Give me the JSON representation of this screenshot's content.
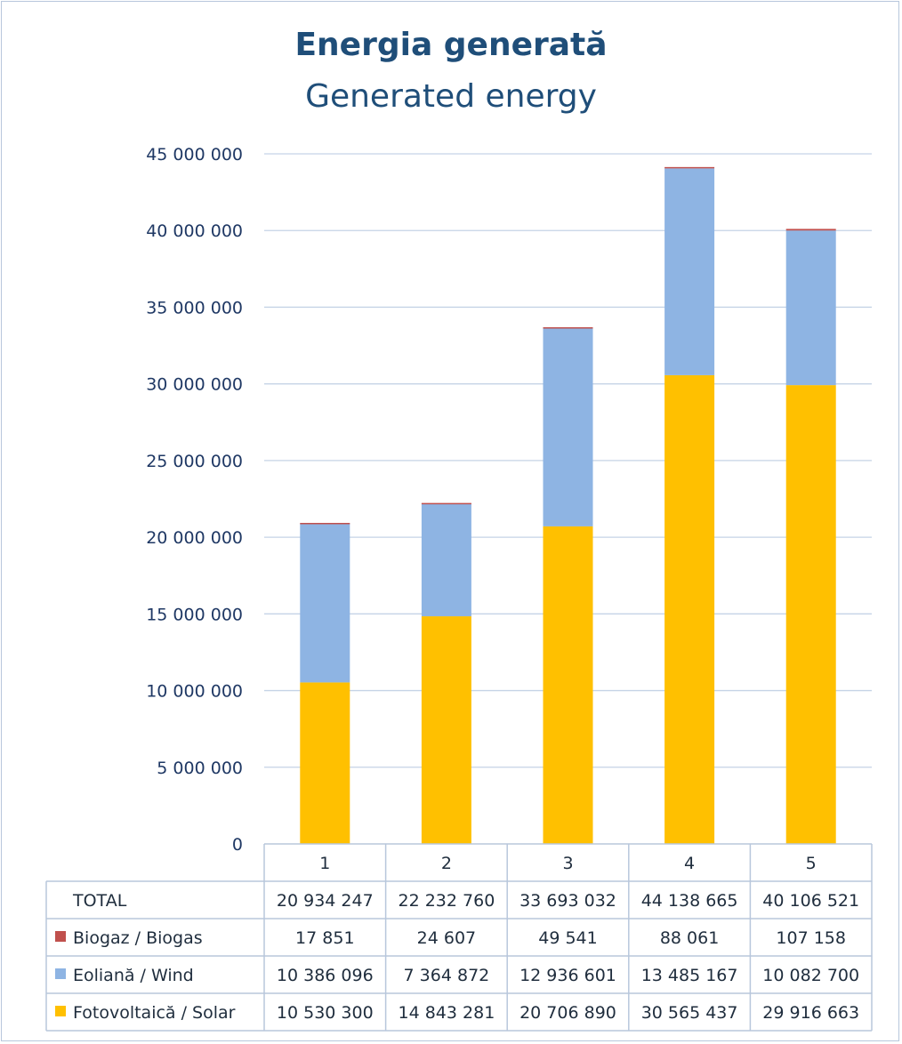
{
  "chart_data": {
    "type": "bar",
    "stacked": true,
    "title": "Energia generată",
    "subtitle": "Generated energy",
    "categories": [
      "1",
      "2",
      "3",
      "4",
      "5"
    ],
    "ylim": [
      0,
      45000000
    ],
    "y_ticks": [
      {
        "value": 0,
        "label": "0"
      },
      {
        "value": 5000000,
        "label": "5 000 000"
      },
      {
        "value": 10000000,
        "label": "10 000 000"
      },
      {
        "value": 15000000,
        "label": "15 000 000"
      },
      {
        "value": 20000000,
        "label": "20 000 000"
      },
      {
        "value": 25000000,
        "label": "25 000 000"
      },
      {
        "value": 30000000,
        "label": "30 000 000"
      },
      {
        "value": 35000000,
        "label": "35 000 000"
      },
      {
        "value": 40000000,
        "label": "40 000 000"
      },
      {
        "value": 45000000,
        "label": "45 000 000"
      }
    ],
    "grid": true,
    "legend": "data-table",
    "series": [
      {
        "name": "Fotovoltaică / Solar",
        "color": "#ffc000",
        "values": [
          10530300,
          14843281,
          20706890,
          30565437,
          29916663
        ],
        "labels": [
          "10 530 300",
          "14 843 281",
          "20 706 890",
          "30 565 437",
          "29 916 663"
        ]
      },
      {
        "name": "Eoliană / Wind",
        "color": "#8eb4e3",
        "values": [
          10386096,
          7364872,
          12936601,
          13485167,
          10082700
        ],
        "labels": [
          "10 386 096",
          "7 364 872",
          "12 936 601",
          "13 485 167",
          "10 082 700"
        ]
      },
      {
        "name": "Biogaz / Biogas",
        "color": "#c0504d",
        "values": [
          17851,
          24607,
          49541,
          88061,
          107158
        ],
        "labels": [
          "17 851",
          "24 607",
          "49 541",
          "88 061",
          "107 158"
        ]
      }
    ],
    "total": {
      "name": "TOTAL",
      "labels": [
        "20 934 247",
        "22 232 760",
        "33 693 032",
        "44 138 665",
        "40 106 521"
      ]
    }
  }
}
